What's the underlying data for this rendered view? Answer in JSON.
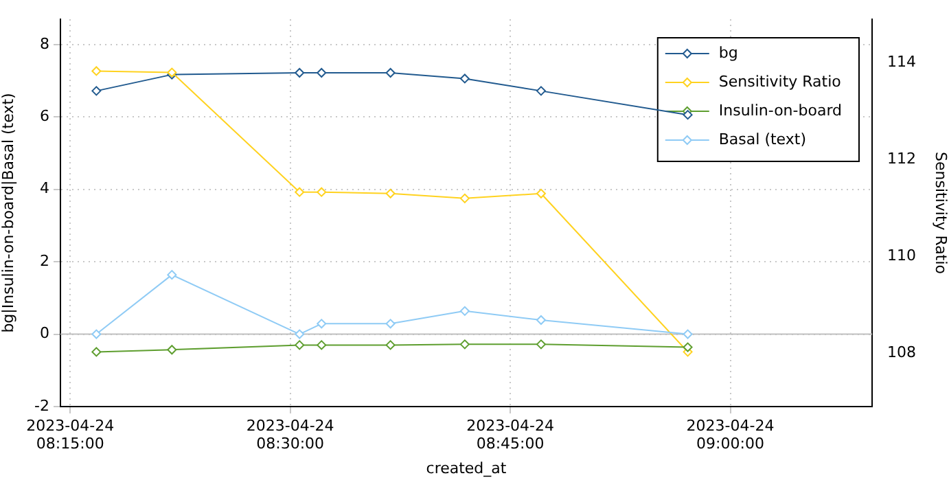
{
  "chart_data": {
    "type": "line",
    "xlabel": "created_at",
    "ylabel": "bg|Insulin-on-board|Basal (text)",
    "y2label": "Sensitivity Ratio",
    "x": [
      "2023-04-24T08:16:47",
      "2023-04-24T08:21:56",
      "2023-04-24T08:30:38",
      "2023-04-24T08:32:08",
      "2023-04-24T08:36:50",
      "2023-04-24T08:41:54",
      "2023-04-24T08:47:06",
      "2023-04-24T08:57:06"
    ],
    "series": [
      {
        "name": "bg",
        "color": "#215a8f",
        "values": [
          6.72,
          7.17,
          7.22,
          7.22,
          7.22,
          7.06,
          6.72,
          6.06
        ]
      },
      {
        "name": "Sensitivity Ratio",
        "color": "#ffd21f",
        "axis": "y2",
        "values": [
          113.83,
          113.8,
          111.33,
          111.33,
          111.3,
          111.2,
          111.3,
          108.03
        ]
      },
      {
        "name": "Insulin-on-board",
        "color": "#5e9e2f",
        "values": [
          -0.49,
          -0.43,
          -0.3,
          -0.3,
          -0.3,
          -0.28,
          -0.28,
          -0.36
        ]
      },
      {
        "name": "Basal (text)",
        "color": "#8fcbf5",
        "values": [
          0,
          1.64,
          0,
          0.29,
          0.29,
          0.64,
          0.39,
          0
        ]
      }
    ],
    "xlim": [
      "2023-04-24T08:14:20",
      "2023-04-24T09:09:40"
    ],
    "xticks": [
      {
        "value": "2023-04-24T08:15",
        "label": "2023-04-24 08:15:00"
      },
      {
        "value": "2023-04-24T08:30",
        "label": "2023-04-24 08:30:00"
      },
      {
        "value": "2023-04-24T08:45",
        "label": "2023-04-24 08:45:00"
      },
      {
        "value": "2023-04-24T09:00",
        "label": "2023-04-24 09:00:00"
      }
    ],
    "ylim": [
      -2,
      8.7
    ],
    "yticks": [
      -2,
      0,
      2,
      4,
      6,
      8
    ],
    "y2lim": [
      106.9,
      114.9
    ],
    "y2ticks": [
      108,
      110,
      112,
      114
    ],
    "ref_lines": [
      {
        "axis": "y",
        "value": 0,
        "color": "#c0c0c0"
      }
    ],
    "grid": true,
    "legend": "top right",
    "marker": "diamond",
    "line_style": "solid"
  }
}
